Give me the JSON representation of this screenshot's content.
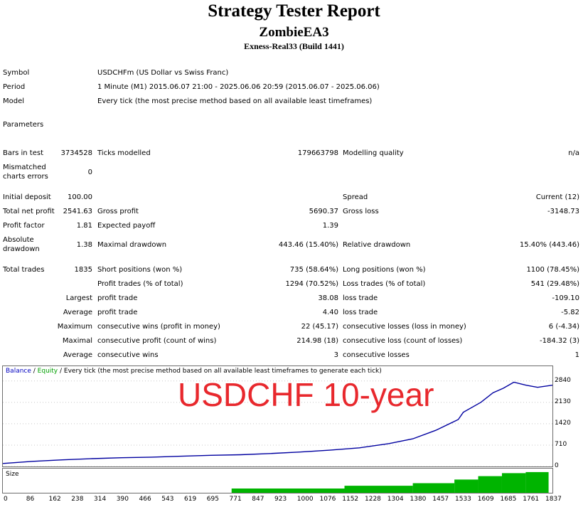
{
  "header": {
    "title": "Strategy Tester Report",
    "subtitle": "ZombieEA3",
    "build": "Exness-Real33 (Build 1441)"
  },
  "info": {
    "symbol_label": "Symbol",
    "symbol_value": "USDCHFm (US Dollar vs Swiss Franc)",
    "period_label": "Period",
    "period_value": "1 Minute (M1) 2015.06.07 21:00 - 2025.06.06 20:59 (2015.06.07 - 2025.06.06)",
    "model_label": "Model",
    "model_value": "Every tick (the most precise method based on all available least timeframes)",
    "parameters_label": "Parameters"
  },
  "stats": {
    "bars_label": "Bars in test",
    "bars_value": "3734528",
    "ticks_label": "Ticks modelled",
    "ticks_value": "179663798",
    "quality_label": "Modelling quality",
    "quality_value": "n/a",
    "mismatch_label_1": "Mismatched",
    "mismatch_label_2": "charts errors",
    "mismatch_value": "0",
    "deposit_label": "Initial deposit",
    "deposit_value": "100.00",
    "spread_label": "Spread",
    "spread_value": "Current (12)",
    "netprofit_label": "Total net profit",
    "netprofit_value": "2541.63",
    "grossprofit_label": "Gross profit",
    "grossprofit_value": "5690.37",
    "grossloss_label": "Gross loss",
    "grossloss_value": "-3148.73",
    "pf_label": "Profit factor",
    "pf_value": "1.81",
    "payoff_label": "Expected payoff",
    "payoff_value": "1.39",
    "absdd_label_1": "Absolute",
    "absdd_label_2": "drawdown",
    "absdd_value": "1.38",
    "maxdd_label": "Maximal drawdown",
    "maxdd_value": "443.46 (15.40%)",
    "reldd_label": "Relative drawdown",
    "reldd_value": "15.40% (443.46)",
    "trades_label": "Total trades",
    "trades_value": "1835",
    "short_label": "Short positions (won %)",
    "short_value": "735 (58.64%)",
    "long_label": "Long positions (won %)",
    "long_value": "1100 (78.45%)",
    "ptrades_label": "Profit trades (% of total)",
    "ptrades_value": "1294 (70.52%)",
    "ltrades_label": "Loss trades (% of total)",
    "ltrades_value": "541 (29.48%)",
    "largest_label": "Largest",
    "lp_label": "profit trade",
    "lp_value": "38.08",
    "ll_label": "loss trade",
    "ll_value": "-109.10",
    "average_label": "Average",
    "ap_label": "profit trade",
    "ap_value": "4.40",
    "al_label": "loss trade",
    "al_value": "-5.82",
    "maximum_label": "Maximum",
    "mcw_label": "consecutive wins (profit in money)",
    "mcw_value": "22 (45.17)",
    "mcl_label": "consecutive losses (loss in money)",
    "mcl_value": "6 (-4.34)",
    "maximal_label": "Maximal",
    "mcp_label": "consecutive profit (count of wins)",
    "mcp_value": "214.98 (18)",
    "mcloss_label": "consecutive loss (count of losses)",
    "mcloss_value": "-184.32 (3)",
    "average2_label": "Average",
    "acw_label": "consecutive wins",
    "acw_value": "3",
    "acl_label": "consecutive losses",
    "acl_value": "1"
  },
  "chart_legend": {
    "balance": "Balance",
    "sep": " / ",
    "equity": "Equity",
    "rest": " / Every tick (the most precise method based on all available least timeframes to generate each tick)"
  },
  "stamp_text": "USDCHF 10-year",
  "size_label": "Size",
  "colors": {
    "balance": "#0000a0",
    "size_bars": "#00b400",
    "stamp": "#e8282d"
  },
  "chart_data": {
    "type": "line",
    "series": [
      {
        "name": "Balance",
        "x": [
          0,
          100,
          200,
          300,
          400,
          500,
          600,
          700,
          800,
          900,
          1000,
          1100,
          1200,
          1300,
          1380,
          1457,
          1533,
          1550,
          1609,
          1650,
          1685,
          1720,
          1761,
          1800,
          1850
        ],
        "y": [
          100,
          170,
          220,
          260,
          290,
          310,
          340,
          370,
          390,
          430,
          480,
          540,
          620,
          760,
          920,
          1200,
          1560,
          1800,
          2130,
          2450,
          2600,
          2800,
          2700,
          2630,
          2700
        ]
      }
    ],
    "x_ticks": [
      "0",
      "86",
      "162",
      "238",
      "314",
      "390",
      "466",
      "543",
      "619",
      "695",
      "771",
      "847",
      "923",
      "1000",
      "1076",
      "1152",
      "1228",
      "1304",
      "1380",
      "1457",
      "1533",
      "1609",
      "1685",
      "1761",
      "1837"
    ],
    "y_ticks": [
      "2840",
      "2130",
      "1420",
      "710",
      "0"
    ],
    "xlim": [
      0,
      1850
    ],
    "ylim": [
      0,
      3000
    ],
    "size_bars": {
      "x": [
        770,
        1150,
        1380,
        1520,
        1600,
        1680,
        1760,
        1837
      ],
      "y": [
        0.2,
        0.33,
        0.45,
        0.62,
        0.78,
        0.92,
        0.97,
        1.0
      ]
    },
    "grid": true
  }
}
